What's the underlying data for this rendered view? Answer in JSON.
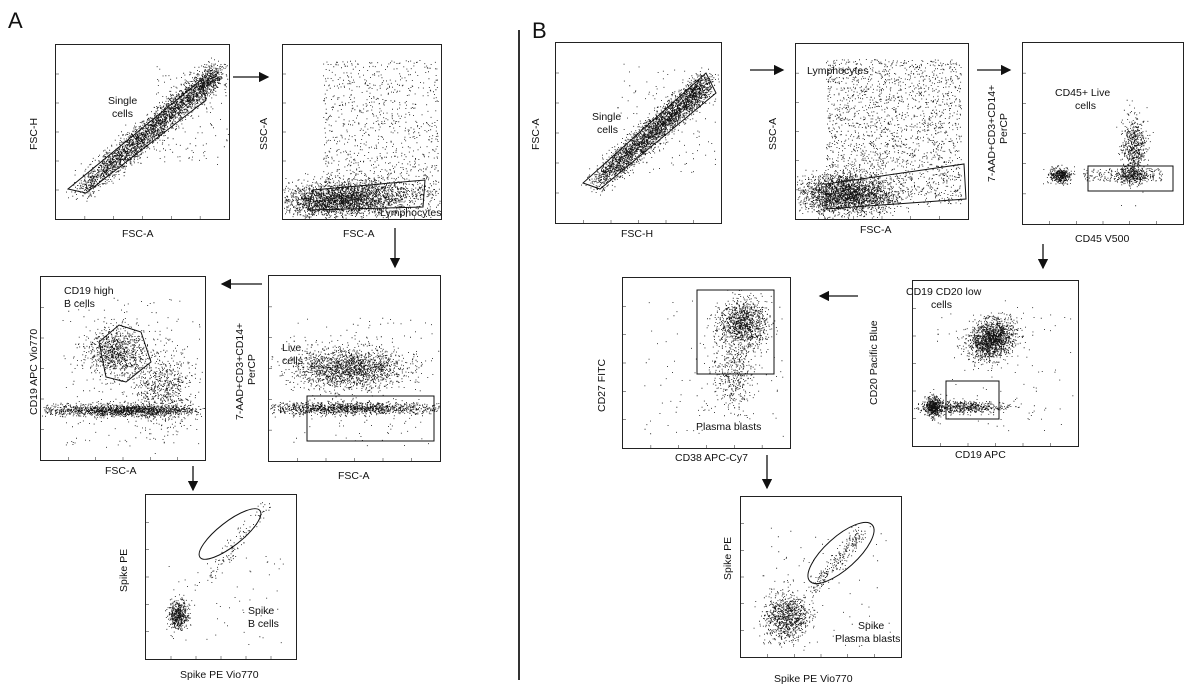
{
  "panels": {
    "a": "A",
    "b": "B"
  },
  "plots": {
    "a1": {
      "x_label": "FSC-A",
      "y_label": "FSC-H",
      "gate_lines": [
        "Single",
        "cells"
      ]
    },
    "a2": {
      "x_label": "FSC-A",
      "y_label": "SSC-A",
      "gate_lines": [
        "Lymphocytes"
      ]
    },
    "a3": {
      "x_label": "FSC-A",
      "y_lines": [
        "7-AAD+CD3+CD14+",
        "PerCP"
      ],
      "gate_lines": [
        "Live",
        "cells"
      ]
    },
    "a4": {
      "x_label": "FSC-A",
      "y_label": "CD19 APC Vio770",
      "gate_lines": [
        "CD19 high",
        "B cells"
      ]
    },
    "a5": {
      "x_label": "Spike PE Vio770",
      "y_label": "Spike PE",
      "gate_lines": [
        "Spike",
        "B cells"
      ]
    },
    "b1": {
      "x_label": "FSC-H",
      "y_label": "FSC-A",
      "gate_lines": [
        "Single",
        "cells"
      ]
    },
    "b2": {
      "x_label": "FSC-A",
      "y_label": "SSC-A",
      "gate_lines": [
        "Lymphocytes"
      ]
    },
    "b3": {
      "x_label": "CD45 V500",
      "y_lines": [
        "7-AAD+CD3+CD14+",
        "PerCP"
      ],
      "gate_lines": [
        "CD45+ Live",
        "cells"
      ]
    },
    "b4": {
      "x_label": "CD19 APC",
      "y_label": "CD20 Pacific Blue",
      "gate_lines": [
        "CD19 CD20 low",
        "cells"
      ]
    },
    "b5": {
      "x_label": "CD38 APC-Cy7",
      "y_label": "CD27 FITC",
      "gate_lines": [
        "Plasma blasts"
      ]
    },
    "b6": {
      "x_label": "Spike PE Vio770",
      "y_label": "Spike PE",
      "gate_lines": [
        "Spike",
        "Plasma blasts"
      ]
    }
  }
}
